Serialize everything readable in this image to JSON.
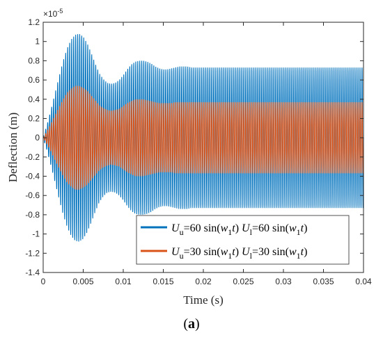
{
  "chart_data": {
    "type": "line",
    "xlabel": "Time (s)",
    "ylabel": "Deflection (m)",
    "xlim": [
      0,
      0.04
    ],
    "ylim": [
      -1.4,
      1.2
    ],
    "y_multiplier_label": "×10",
    "y_multiplier_exponent": "-5",
    "x_ticks": [
      "0",
      "0.005",
      "0.01",
      "0.015",
      "0.02",
      "0.025",
      "0.03",
      "0.035",
      "0.04"
    ],
    "y_ticks": [
      "1.2",
      "1",
      "0.8",
      "0.6",
      "0.4",
      "0.2",
      "0",
      "-0.2",
      "-0.4",
      "-0.6",
      "-0.8",
      "-1",
      "-1.2",
      "-1.4"
    ],
    "grid": false,
    "legend_position": "bottom-right",
    "series": [
      {
        "name_parts": [
          "U",
          "u",
          "=60 sin(",
          "w",
          "1",
          "t",
          ")  ",
          "U",
          "l",
          "=60 sin(",
          "w",
          "1",
          "t",
          ")"
        ],
        "color": "#0072BD",
        "envelope": {
          "t": [
            0,
            0.0005,
            0.001,
            0.0015,
            0.002,
            0.0025,
            0.003,
            0.0035,
            0.004,
            0.0045,
            0.005,
            0.0055,
            0.006,
            0.0065,
            0.007,
            0.0075,
            0.008,
            0.0085,
            0.009,
            0.0095,
            0.01,
            0.0105,
            0.011,
            0.0115,
            0.012,
            0.0125,
            0.013,
            0.0135,
            0.014,
            0.0145,
            0.015,
            0.0155,
            0.016,
            0.0165,
            0.017,
            0.0175,
            0.018,
            0.0185,
            0.019,
            0.0195,
            0.02,
            0.0205,
            0.021,
            0.0215,
            0.022,
            0.0225,
            0.023,
            0.0235,
            0.024,
            0.0245,
            0.025,
            0.03,
            0.035,
            0.04
          ],
          "amplitude": [
            0,
            0.14,
            0.3,
            0.47,
            0.64,
            0.8,
            0.93,
            1.02,
            1.07,
            1.08,
            1.05,
            0.98,
            0.88,
            0.77,
            0.67,
            0.61,
            0.57,
            0.56,
            0.57,
            0.6,
            0.65,
            0.71,
            0.76,
            0.79,
            0.8,
            0.8,
            0.79,
            0.77,
            0.74,
            0.72,
            0.71,
            0.71,
            0.72,
            0.73,
            0.74,
            0.74,
            0.74,
            0.73,
            0.73,
            0.73,
            0.73,
            0.73,
            0.73,
            0.73,
            0.73,
            0.73,
            0.73,
            0.73,
            0.73,
            0.73,
            0.73,
            0.73,
            0.73,
            0.73
          ]
        }
      },
      {
        "name_parts": [
          "U",
          "u",
          "=30 sin(",
          "w",
          "1",
          "t",
          ")  ",
          "U",
          "l",
          "=30 sin(",
          "w",
          "1",
          "t",
          ")"
        ],
        "color": "#D95319",
        "envelope": {
          "t": [
            0,
            0.0005,
            0.001,
            0.0015,
            0.002,
            0.0025,
            0.003,
            0.0035,
            0.004,
            0.0045,
            0.005,
            0.0055,
            0.006,
            0.0065,
            0.007,
            0.0075,
            0.008,
            0.0085,
            0.009,
            0.0095,
            0.01,
            0.0105,
            0.011,
            0.0115,
            0.012,
            0.0125,
            0.013,
            0.0135,
            0.014,
            0.0145,
            0.015,
            0.0155,
            0.016,
            0.0165,
            0.017,
            0.0175,
            0.018,
            0.02,
            0.025,
            0.03,
            0.035,
            0.04
          ],
          "amplitude": [
            0,
            0.07,
            0.15,
            0.24,
            0.32,
            0.4,
            0.47,
            0.51,
            0.54,
            0.54,
            0.52,
            0.49,
            0.44,
            0.39,
            0.34,
            0.31,
            0.29,
            0.28,
            0.29,
            0.3,
            0.33,
            0.36,
            0.38,
            0.4,
            0.4,
            0.4,
            0.39,
            0.38,
            0.37,
            0.36,
            0.36,
            0.36,
            0.36,
            0.37,
            0.37,
            0.37,
            0.37,
            0.37,
            0.37,
            0.37,
            0.37,
            0.37
          ]
        }
      }
    ],
    "oscillation_period_s": 0.00025
  },
  "caption": "(a)"
}
